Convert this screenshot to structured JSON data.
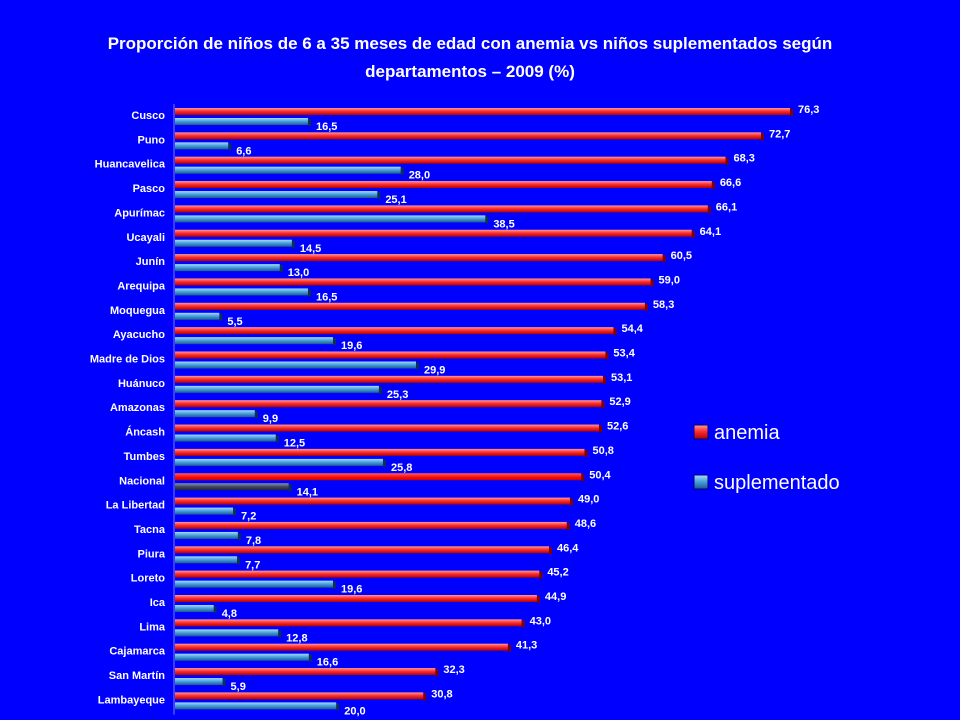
{
  "title_lines": [
    "Proporción de niños de 6 a 35 meses de edad con anemia vs niños suplementados según",
    "departamentos  – 2009 (%)"
  ],
  "colors": {
    "background": "#0000ff",
    "anemia": "#ff3030",
    "suplementado": "#4aa3df",
    "nacional_anemia": "#ff1010",
    "nacional_suplementado": "#404a60"
  },
  "chart_data": {
    "type": "bar",
    "orientation": "horizontal",
    "title": "Proporción de niños de 6 a 35 meses de edad con anemia vs niños suplementados según departamentos  – 2009 (%)",
    "xlim": [
      0,
      80
    ],
    "legend_position": "right",
    "categories": [
      "Cusco",
      "Puno",
      "Huancavelica",
      "Pasco",
      "Apurímac",
      "Ucayali",
      "Junín",
      "Arequipa",
      "Moquegua",
      "Ayacucho",
      "Madre de Dios",
      "Huánuco",
      "Amazonas",
      "Áncash",
      "Tumbes",
      "Nacional",
      "La Libertad",
      "Tacna",
      "Piura",
      "Loreto",
      "Ica",
      "Lima",
      "Cajamarca",
      "San Martín",
      "Lambayeque"
    ],
    "series": [
      {
        "name": "anemia",
        "values": [
          76.3,
          72.7,
          68.3,
          66.6,
          66.1,
          64.1,
          60.5,
          59.0,
          58.3,
          54.4,
          53.4,
          53.1,
          52.9,
          52.6,
          50.8,
          50.4,
          49.0,
          48.6,
          46.4,
          45.2,
          44.9,
          43.0,
          41.3,
          32.3,
          30.8
        ],
        "labels": [
          "76,3",
          "72,7",
          "68,3",
          "66,6",
          "66,1",
          "64,1",
          "60,5",
          "59,0",
          "58,3",
          "54,4",
          "53,4",
          "53,1",
          "52,9",
          "52,6",
          "50,8",
          "50,4",
          "49,0",
          "48,6",
          "46,4",
          "45,2",
          "44,9",
          "43,0",
          "41,3",
          "32,3",
          "30,8"
        ]
      },
      {
        "name": "suplementado",
        "values": [
          16.5,
          6.6,
          28.0,
          25.1,
          38.5,
          14.5,
          13.0,
          16.5,
          5.5,
          19.6,
          29.9,
          25.3,
          9.9,
          12.5,
          25.8,
          14.1,
          7.2,
          7.8,
          7.7,
          19.6,
          4.8,
          12.8,
          16.6,
          5.9,
          20.0
        ],
        "labels": [
          "16,5",
          "6,6",
          "28,0",
          "25,1",
          "38,5",
          "14,5",
          "13,0",
          "16,5",
          "5,5",
          "19,6",
          "29,9",
          "25,3",
          "9,9",
          "12,5",
          "25,8",
          "14,1",
          "7,2",
          "7,8",
          "7,7",
          "19,6",
          "4,8",
          "12,8",
          "16,6",
          "5,9",
          "20,0"
        ]
      }
    ],
    "highlight_category": "Nacional"
  }
}
